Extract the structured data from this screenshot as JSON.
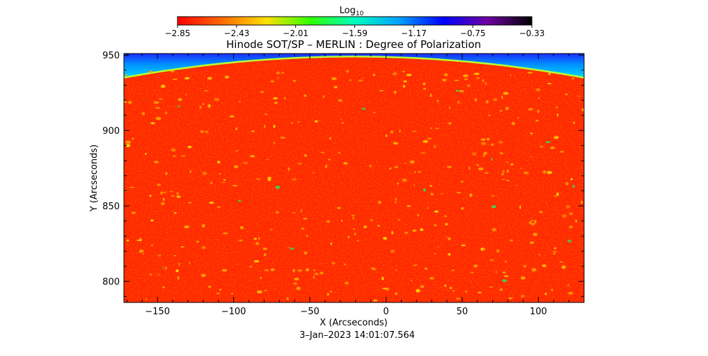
{
  "chart_data": {
    "type": "heatmap",
    "title": "Hinode SOT/SP – MERLIN : Degree of Polarization",
    "xlabel": "X (Arcseconds)",
    "ylabel": "Y (Arcseconds)",
    "xlim": [
      -172,
      130
    ],
    "ylim": [
      786,
      951
    ],
    "xticks": [
      -150,
      -100,
      -50,
      0,
      50,
      100
    ],
    "xtick_labels": [
      "−150",
      "−100",
      "−50",
      "0",
      "50",
      "100"
    ],
    "yticks": [
      800,
      850,
      900,
      950
    ],
    "ytick_labels": [
      "800",
      "850",
      "900",
      "950"
    ],
    "colorbar": {
      "label_base": "Log",
      "label_sub": "10",
      "range": [
        -2.85,
        -0.33
      ],
      "ticks": [
        -2.85,
        -2.43,
        -2.01,
        -1.59,
        -1.17,
        -0.75,
        -0.33
      ],
      "tick_labels": [
        "−2.85",
        "−2.43",
        "−2.01",
        "−1.59",
        "−1.17",
        "−0.75",
        "−0.33"
      ],
      "colormap": [
        "#ff0000",
        "#ff6a00",
        "#ffe000",
        "#30ff00",
        "#00ffc0",
        "#00a0ff",
        "#0000ff",
        "#7000a0",
        "#000000"
      ]
    },
    "limb_y_at_center": 949,
    "limb_y_at_edges": 935,
    "timestamp": "3–Jan–2023 14:01:07.564"
  }
}
